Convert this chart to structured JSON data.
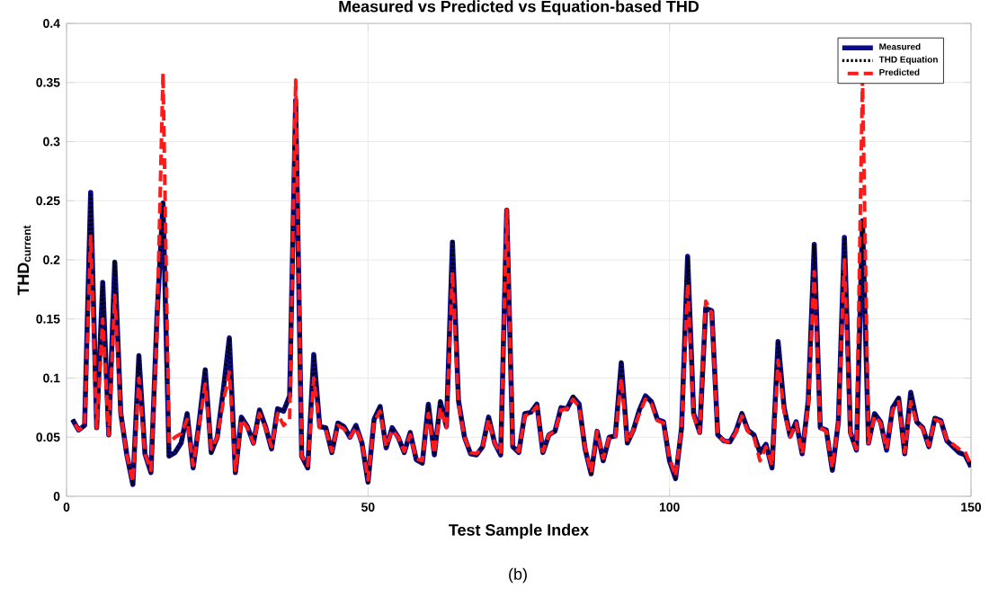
{
  "chart_data": {
    "type": "line",
    "title": "Measured vs Predicted vs Equation-based THD",
    "xlabel": "Test Sample Index",
    "ylabel": "THD$_{current}$",
    "annotations": [
      "(b)"
    ],
    "x": [
      1,
      2,
      3,
      4,
      5,
      6,
      7,
      8,
      9,
      10,
      11,
      12,
      13,
      14,
      15,
      16,
      17,
      18,
      19,
      20,
      21,
      22,
      23,
      24,
      25,
      26,
      27,
      28,
      29,
      30,
      31,
      32,
      33,
      34,
      35,
      36,
      37,
      38,
      39,
      40,
      41,
      42,
      43,
      44,
      45,
      46,
      47,
      48,
      49,
      50,
      51,
      52,
      53,
      54,
      55,
      56,
      57,
      58,
      59,
      60,
      61,
      62,
      63,
      64,
      65,
      66,
      67,
      68,
      69,
      70,
      71,
      72,
      73,
      74,
      75,
      76,
      77,
      78,
      79,
      80,
      81,
      82,
      83,
      84,
      85,
      86,
      87,
      88,
      89,
      90,
      91,
      92,
      93,
      94,
      95,
      96,
      97,
      98,
      99,
      100,
      101,
      102,
      103,
      104,
      105,
      106,
      107,
      108,
      109,
      110,
      111,
      112,
      113,
      114,
      115,
      116,
      117,
      118,
      119,
      120,
      121,
      122,
      123,
      124,
      125,
      126,
      127,
      128,
      129,
      130,
      131,
      132,
      133,
      134,
      135,
      136,
      137,
      138,
      139,
      140,
      141,
      142,
      143,
      144,
      145,
      146,
      147,
      148,
      149,
      150
    ],
    "series": [
      {
        "name": "Measured",
        "color": "#0a0a8c",
        "line_style": "solid",
        "values": [
          0.065,
          0.056,
          0.06,
          0.257,
          0.058,
          0.181,
          0.052,
          0.198,
          0.07,
          0.035,
          0.01,
          0.119,
          0.036,
          0.02,
          0.152,
          0.248,
          0.034,
          0.037,
          0.045,
          0.07,
          0.024,
          0.063,
          0.107,
          0.037,
          0.05,
          0.09,
          0.134,
          0.02,
          0.067,
          0.059,
          0.045,
          0.073,
          0.059,
          0.04,
          0.074,
          0.072,
          0.085,
          0.335,
          0.034,
          0.024,
          0.12,
          0.059,
          0.058,
          0.037,
          0.062,
          0.059,
          0.05,
          0.06,
          0.045,
          0.012,
          0.065,
          0.076,
          0.041,
          0.058,
          0.05,
          0.037,
          0.054,
          0.031,
          0.028,
          0.078,
          0.035,
          0.08,
          0.059,
          0.215,
          0.081,
          0.05,
          0.036,
          0.035,
          0.042,
          0.067,
          0.045,
          0.035,
          0.242,
          0.042,
          0.037,
          0.07,
          0.071,
          0.078,
          0.037,
          0.052,
          0.055,
          0.075,
          0.074,
          0.084,
          0.078,
          0.04,
          0.019,
          0.055,
          0.03,
          0.05,
          0.051,
          0.113,
          0.045,
          0.056,
          0.073,
          0.085,
          0.08,
          0.065,
          0.063,
          0.03,
          0.015,
          0.058,
          0.203,
          0.07,
          0.054,
          0.159,
          0.157,
          0.052,
          0.047,
          0.046,
          0.055,
          0.07,
          0.056,
          0.052,
          0.037,
          0.044,
          0.024,
          0.131,
          0.075,
          0.051,
          0.063,
          0.036,
          0.081,
          0.213,
          0.058,
          0.056,
          0.022,
          0.063,
          0.219,
          0.054,
          0.039,
          0.233,
          0.045,
          0.07,
          0.063,
          0.039,
          0.075,
          0.083,
          0.036,
          0.088,
          0.063,
          0.058,
          0.042,
          0.066,
          0.064,
          0.047,
          0.042,
          0.037,
          0.035,
          0.025
        ]
      },
      {
        "name": "THD Equation",
        "color": "#000000",
        "line_style": "dotted",
        "values": [
          0.065,
          0.056,
          0.06,
          0.257,
          0.058,
          0.181,
          0.052,
          0.198,
          0.07,
          0.035,
          0.01,
          0.119,
          0.036,
          0.02,
          0.152,
          0.248,
          0.034,
          0.037,
          0.045,
          0.07,
          0.024,
          0.063,
          0.107,
          0.037,
          0.05,
          0.09,
          0.134,
          0.02,
          0.067,
          0.059,
          0.045,
          0.073,
          0.059,
          0.04,
          0.074,
          0.072,
          0.085,
          0.335,
          0.034,
          0.024,
          0.12,
          0.059,
          0.058,
          0.037,
          0.062,
          0.059,
          0.05,
          0.06,
          0.045,
          0.012,
          0.065,
          0.076,
          0.041,
          0.058,
          0.05,
          0.037,
          0.054,
          0.031,
          0.028,
          0.078,
          0.035,
          0.08,
          0.059,
          0.215,
          0.081,
          0.05,
          0.036,
          0.035,
          0.042,
          0.067,
          0.045,
          0.035,
          0.242,
          0.042,
          0.037,
          0.07,
          0.071,
          0.078,
          0.037,
          0.052,
          0.055,
          0.075,
          0.074,
          0.084,
          0.078,
          0.04,
          0.019,
          0.055,
          0.03,
          0.05,
          0.051,
          0.113,
          0.045,
          0.056,
          0.073,
          0.085,
          0.08,
          0.065,
          0.063,
          0.03,
          0.015,
          0.058,
          0.203,
          0.07,
          0.054,
          0.159,
          0.157,
          0.052,
          0.047,
          0.046,
          0.055,
          0.07,
          0.056,
          0.052,
          0.037,
          0.044,
          0.024,
          0.131,
          0.075,
          0.051,
          0.063,
          0.036,
          0.081,
          0.213,
          0.058,
          0.056,
          0.022,
          0.063,
          0.219,
          0.054,
          0.039,
          0.233,
          0.045,
          0.07,
          0.063,
          0.039,
          0.075,
          0.083,
          0.036,
          0.088,
          0.063,
          0.058,
          0.042,
          0.066,
          0.064,
          0.047,
          0.042,
          0.037,
          0.035,
          0.025
        ]
      },
      {
        "name": "Predicted",
        "color": "#ff1a1a",
        "line_style": "dashed",
        "values": [
          0.065,
          0.056,
          0.06,
          0.22,
          0.058,
          0.15,
          0.052,
          0.17,
          0.07,
          0.035,
          0.012,
          0.1,
          0.036,
          0.022,
          0.14,
          0.358,
          0.045,
          0.05,
          0.053,
          0.065,
          0.026,
          0.06,
          0.095,
          0.04,
          0.05,
          0.08,
          0.105,
          0.022,
          0.065,
          0.058,
          0.045,
          0.07,
          0.058,
          0.042,
          0.07,
          0.06,
          0.065,
          0.352,
          0.034,
          0.026,
          0.1,
          0.058,
          0.056,
          0.038,
          0.06,
          0.057,
          0.05,
          0.058,
          0.045,
          0.014,
          0.063,
          0.072,
          0.042,
          0.056,
          0.05,
          0.038,
          0.052,
          0.032,
          0.03,
          0.07,
          0.036,
          0.075,
          0.058,
          0.19,
          0.078,
          0.05,
          0.037,
          0.036,
          0.042,
          0.065,
          0.045,
          0.036,
          0.242,
          0.043,
          0.038,
          0.068,
          0.07,
          0.076,
          0.038,
          0.052,
          0.055,
          0.073,
          0.074,
          0.082,
          0.076,
          0.041,
          0.02,
          0.055,
          0.032,
          0.05,
          0.05,
          0.1,
          0.046,
          0.056,
          0.07,
          0.082,
          0.078,
          0.064,
          0.062,
          0.032,
          0.017,
          0.058,
          0.18,
          0.068,
          0.054,
          0.165,
          0.155,
          0.052,
          0.047,
          0.046,
          0.054,
          0.068,
          0.055,
          0.05,
          0.03,
          0.042,
          0.026,
          0.115,
          0.072,
          0.05,
          0.062,
          0.036,
          0.078,
          0.19,
          0.058,
          0.055,
          0.024,
          0.062,
          0.2,
          0.053,
          0.04,
          0.353,
          0.045,
          0.068,
          0.062,
          0.04,
          0.073,
          0.08,
          0.037,
          0.08,
          0.062,
          0.057,
          0.043,
          0.065,
          0.063,
          0.048,
          0.044,
          0.04,
          0.038,
          0.025
        ]
      }
    ],
    "xlim": [
      0,
      150
    ],
    "xticks": [
      0,
      50,
      100,
      150
    ],
    "ylim": [
      0,
      0.4
    ],
    "yticks": [
      0,
      0.05,
      0.1,
      0.15,
      0.2,
      0.25,
      0.3,
      0.35,
      0.4
    ],
    "grid": true,
    "legend": "top right",
    "marker": "none"
  }
}
